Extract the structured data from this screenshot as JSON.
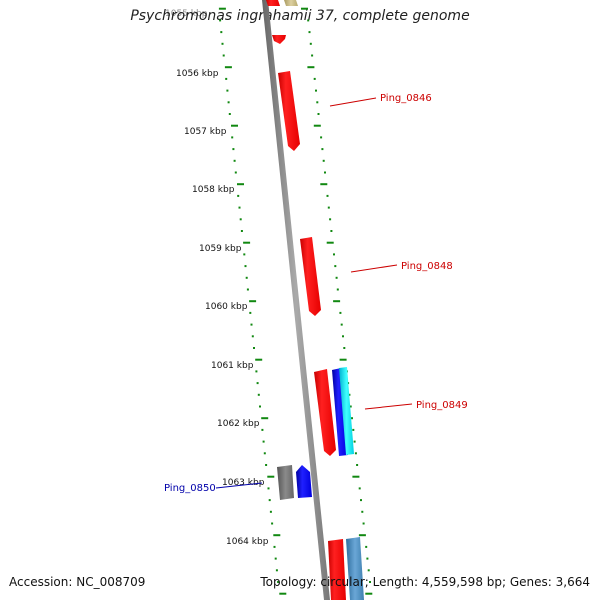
{
  "title": "Psychromonas ingrahamii 37, complete genome",
  "accession": "Accession: NC_008709",
  "summary": "Topology: circular; Length: 4,559,598 bp; Genes: 3,664",
  "top_cut_label": "1055 kbp",
  "kbp_labels": [
    "1056 kbp",
    "1057 kbp",
    "1058 kbp",
    "1059 kbp",
    "1060 kbp",
    "1061 kbp",
    "1062 kbp",
    "1063 kbp",
    "1064 kbp"
  ],
  "gene_labels": [
    {
      "id": "Ping_0846",
      "color": "#cc0000"
    },
    {
      "id": "Ping_0848",
      "color": "#cc0000"
    },
    {
      "id": "Ping_0849",
      "color": "#cc0000"
    },
    {
      "id": "Ping_0850",
      "color": "#0000aa"
    }
  ],
  "colors": {
    "backbone": "#888888",
    "tick": "#118811",
    "red_gene": "#ff0000",
    "blue_gene": "#0000ff",
    "cyan_gene": "#00ffff",
    "grey_gene": "#777777",
    "steel_gene": "#4682b4",
    "olive_gene": "#c8bb88"
  }
}
